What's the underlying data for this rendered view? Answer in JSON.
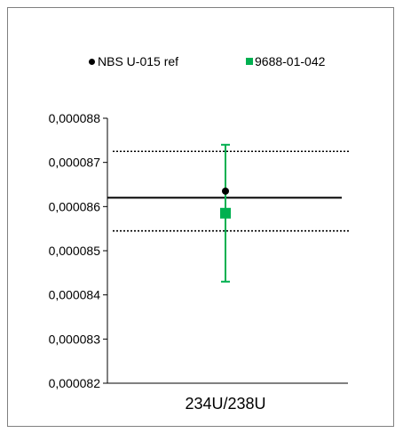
{
  "chart_data": {
    "type": "scatter",
    "title": "",
    "categories": [
      "234U/238U"
    ],
    "ylim": [
      8.2e-05,
      8.8e-05
    ],
    "y_ticks": [
      "0,000082",
      "0,000083",
      "0,000084",
      "0,000085",
      "0,000086",
      "0,000087",
      "0,000088"
    ],
    "y_tick_values": [
      8.2e-05,
      8.3e-05,
      8.4e-05,
      8.5e-05,
      8.6e-05,
      8.7e-05,
      8.8e-05
    ],
    "legend_position": "top",
    "series": [
      {
        "name": "NBS U-015 ref",
        "marker": "circle",
        "color": "#000000",
        "value": 8.635e-05
      },
      {
        "name": "9688-01-042",
        "marker": "square",
        "color": "#00b050",
        "value": 8.585e-05,
        "error_low": 8.43e-05,
        "error_high": 8.74e-05
      }
    ],
    "reference_lines": [
      {
        "style": "solid",
        "value": 8.62e-05
      },
      {
        "style": "dotted",
        "value": 8.725e-05
      },
      {
        "style": "dotted",
        "value": 8.545e-05
      }
    ]
  }
}
